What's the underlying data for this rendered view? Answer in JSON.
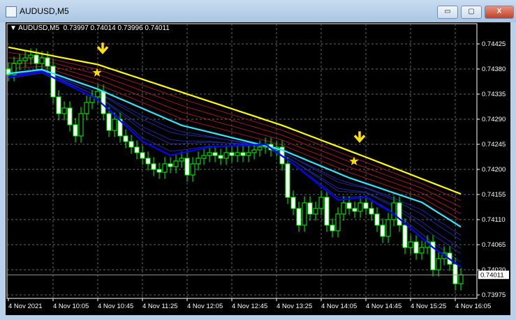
{
  "window": {
    "title": "AUDUSD,M5",
    "minimize": "▭",
    "maximize": "▢",
    "close": "X"
  },
  "legend": {
    "symbol": "AUDUSD,M5",
    "ohlc": "0.73997 0.74014 0.73996 0.74011"
  },
  "colors": {
    "bull": "#00ff00",
    "bear": "#ffffff",
    "ma_slow": "#ffff00",
    "ma_mid": "#33e6ff",
    "ma_fast": "#0000ff",
    "red_band": "#a01818",
    "blue_band": "#1a2a9a",
    "arrow": "#ffe000"
  },
  "chart_data": {
    "type": "candlestick",
    "title": "",
    "ylim": [
      0.7397,
      0.7446
    ],
    "yticks": [
      "0.74425",
      "0.74380",
      "0.74335",
      "0.74290",
      "0.74245",
      "0.74200",
      "0.74155",
      "0.74110",
      "0.74065",
      "0.74020",
      "0.73975"
    ],
    "xticks": [
      "4 Nov 2021",
      "4 Nov 10:05",
      "4 Nov 10:45",
      "4 Nov 11:25",
      "4 Nov 12:05",
      "4 Nov 12:45",
      "4 Nov 13:25",
      "4 Nov 14:05",
      "4 Nov 14:45",
      "4 Nov 15:25",
      "4 Nov 16:05"
    ],
    "current_price": "0.74011",
    "grid": true,
    "closes": [
      0.7437,
      0.7439,
      0.74395,
      0.744,
      0.74405,
      0.7439,
      0.744,
      0.74385,
      0.7433,
      0.743,
      0.7431,
      0.7428,
      0.7426,
      0.743,
      0.7432,
      0.7433,
      0.7434,
      0.743,
      0.7427,
      0.7429,
      0.7426,
      0.7425,
      0.7424,
      0.7423,
      0.7422,
      0.7421,
      0.742,
      0.74195,
      0.7421,
      0.74205,
      0.74215,
      0.7422,
      0.7419,
      0.7421,
      0.7422,
      0.74225,
      0.7423,
      0.74225,
      0.7422,
      0.7423,
      0.74225,
      0.7423,
      0.74225,
      0.7423,
      0.74235,
      0.7424,
      0.74245,
      0.74235,
      0.7424,
      0.7421,
      0.7415,
      0.7413,
      0.741,
      0.7414,
      0.7412,
      0.7413,
      0.7415,
      0.741,
      0.7409,
      0.7412,
      0.7414,
      0.7413,
      0.74125,
      0.7414,
      0.7413,
      0.7412,
      0.741,
      0.7408,
      0.7411,
      0.7414,
      0.741,
      0.7406,
      0.7407,
      0.7405,
      0.7406,
      0.7407,
      0.7402,
      0.7404,
      0.7405,
      0.7403,
      0.73995,
      0.74011
    ],
    "ma_lines": {
      "yellow": [
        [
          0,
          0.74419
        ],
        [
          16,
          0.74388
        ],
        [
          49,
          0.74279
        ],
        [
          64,
          0.74222
        ],
        [
          81,
          0.74156
        ]
      ],
      "cyan": [
        [
          0,
          0.74372
        ],
        [
          6,
          0.74379
        ],
        [
          16,
          0.74344
        ],
        [
          31,
          0.74279
        ],
        [
          49,
          0.74235
        ],
        [
          61,
          0.74185
        ],
        [
          74,
          0.74141
        ],
        [
          81,
          0.74097
        ]
      ],
      "blue": [
        [
          0,
          0.74365
        ],
        [
          6,
          0.74375
        ],
        [
          16,
          0.74325
        ],
        [
          24,
          0.7425
        ],
        [
          29,
          0.74225
        ],
        [
          36,
          0.7424
        ],
        [
          46,
          0.74245
        ],
        [
          51,
          0.7421
        ],
        [
          59,
          0.74145
        ],
        [
          64,
          0.7415
        ],
        [
          69,
          0.7412
        ],
        [
          76,
          0.7406
        ],
        [
          81,
          0.74025
        ]
      ]
    },
    "signals": [
      {
        "bar": 17,
        "type": "down-arrow"
      },
      {
        "bar": 63,
        "type": "down-arrow"
      }
    ]
  }
}
